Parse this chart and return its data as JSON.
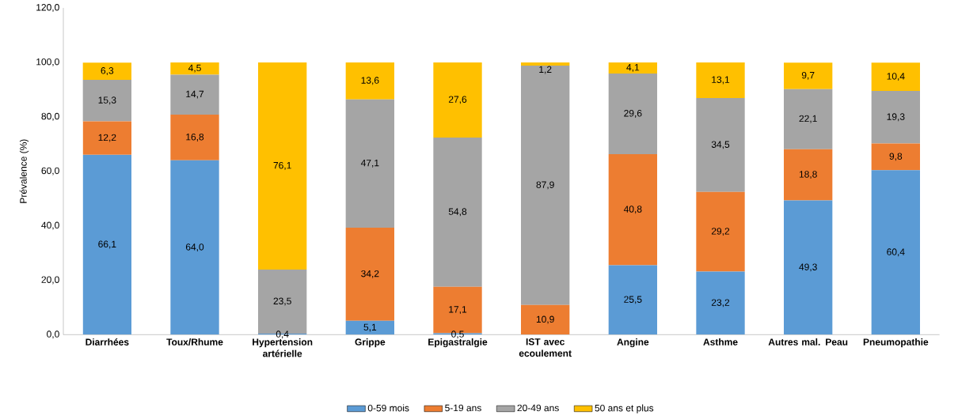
{
  "chart_data": {
    "type": "bar",
    "stacked": true,
    "ylabel": "Prévalence (%)",
    "categories": [
      "Diarrhées",
      "Toux/Rhume",
      "Hypertension artérielle",
      "Grippe",
      "Epigastralgie",
      "IST avec ecoulement",
      "Angine",
      "Asthme",
      "Autres mal. Peau",
      "Pneumopathie"
    ],
    "series": [
      {
        "name": "0-59 mois",
        "color": "#5b9bd5",
        "values": [
          66.1,
          64.0,
          0.4,
          5.1,
          0.5,
          0,
          25.5,
          23.2,
          49.3,
          60.4
        ],
        "value_labels": [
          "66,1",
          "64,0",
          "0,4",
          "5,1",
          "0,5",
          null,
          "25,5",
          "23,2",
          "49,3",
          "60,4"
        ]
      },
      {
        "name": "5-19 ans",
        "color": "#ed7d31",
        "values": [
          12.2,
          16.8,
          0,
          34.2,
          17.1,
          10.9,
          40.8,
          29.2,
          18.8,
          9.8
        ],
        "value_labels": [
          "12,2",
          "16,8",
          null,
          "34,2",
          "17,1",
          "10,9",
          "40,8",
          "29,2",
          "18,8",
          "9,8"
        ]
      },
      {
        "name": "20-49 ans",
        "color": "#a5a5a5",
        "values": [
          15.3,
          14.7,
          23.5,
          47.1,
          54.8,
          87.9,
          29.6,
          34.5,
          22.1,
          19.3
        ],
        "value_labels": [
          "15,3",
          "14,7",
          "23,5",
          "47,1",
          "54,8",
          "87,9",
          "29,6",
          "34,5",
          "22,1",
          "19,3"
        ]
      },
      {
        "name": "50 ans et plus",
        "color": "#ffc000",
        "values": [
          6.3,
          4.5,
          76.1,
          13.6,
          27.6,
          1.2,
          4.1,
          13.1,
          9.7,
          10.4
        ],
        "value_labels": [
          "6,3",
          "4,5",
          "76,1",
          "13,6",
          "27,6",
          "1,2",
          "4,1",
          "13,1",
          "9,7",
          "10,4"
        ]
      }
    ],
    "ylim": [
      0,
      120
    ],
    "yticks": [
      {
        "value": 0,
        "label": "0,0"
      },
      {
        "value": 20,
        "label": "20,0"
      },
      {
        "value": 40,
        "label": "40,0"
      },
      {
        "value": 60,
        "label": "60,0"
      },
      {
        "value": 80,
        "label": "80,0"
      },
      {
        "value": 100,
        "label": "100,0"
      },
      {
        "value": 120,
        "label": "120,0"
      }
    ],
    "legend": "bottom",
    "grid": false
  }
}
